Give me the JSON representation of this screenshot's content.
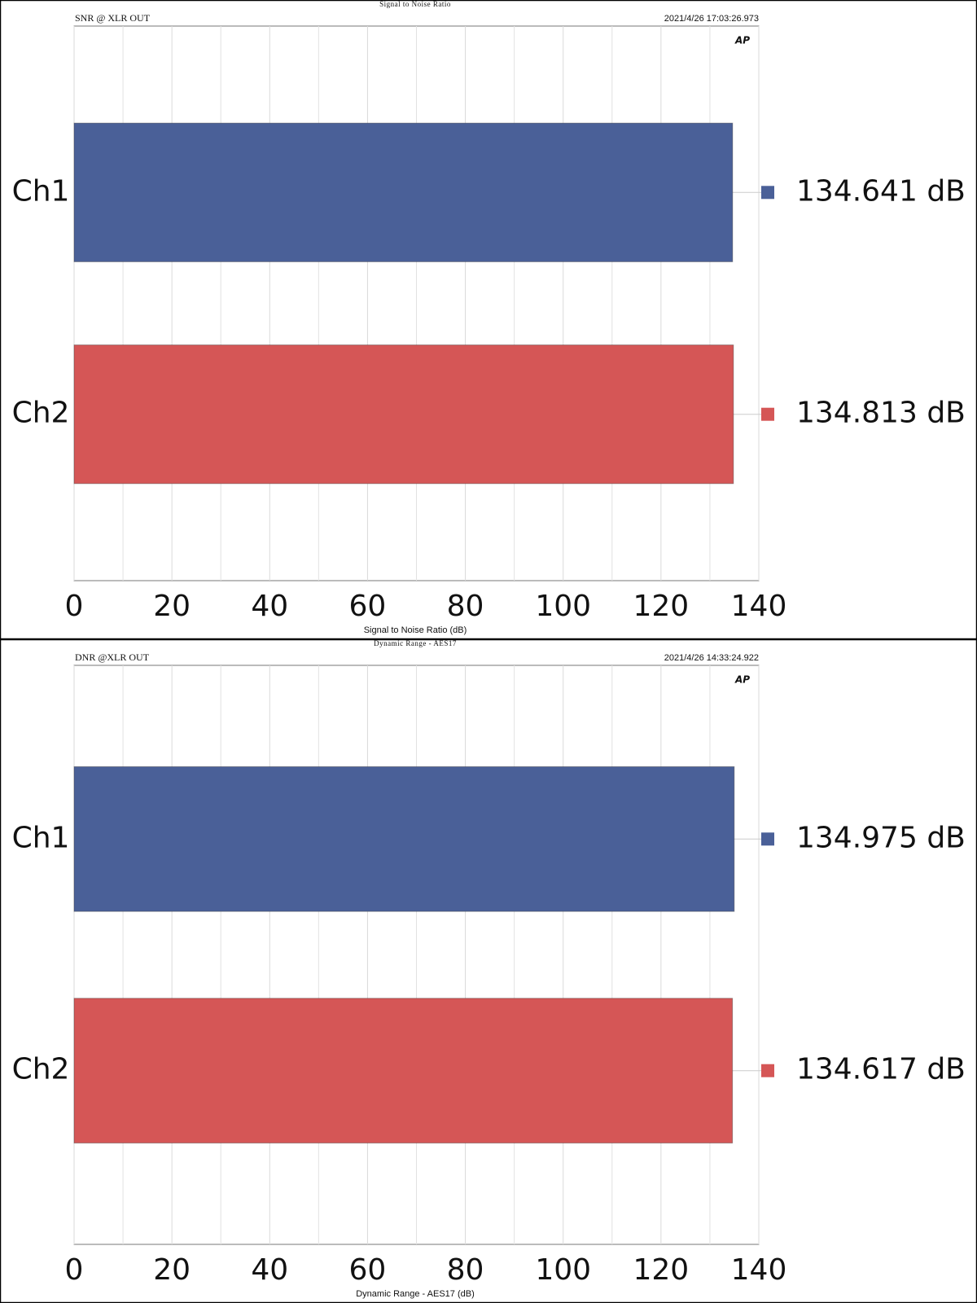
{
  "chart_data": [
    {
      "type": "bar",
      "orientation": "horizontal",
      "title": "Signal to Noise Ratio",
      "subtitle": "SNR @ XLR OUT",
      "timestamp": "2021/4/26 17:03:26.973",
      "logo": "AP",
      "xlabel": "Signal to Noise Ratio (dB)",
      "categories": [
        "Ch1",
        "Ch2"
      ],
      "values": [
        134.641,
        134.813
      ],
      "value_labels": [
        "134.641 dB",
        "134.813 dB"
      ],
      "colors": [
        "#4a6098",
        "#d55656"
      ],
      "xlim": [
        0,
        140
      ],
      "xticks": [
        0,
        20,
        40,
        60,
        80,
        100,
        120,
        140
      ],
      "grid": true,
      "minor_grid": true
    },
    {
      "type": "bar",
      "orientation": "horizontal",
      "title": "Dynamic Range - AES17",
      "subtitle": "DNR @XLR OUT",
      "timestamp": "2021/4/26 14:33:24.922",
      "logo": "AP",
      "xlabel": "Dynamic Range - AES17 (dB)",
      "categories": [
        "Ch1",
        "Ch2"
      ],
      "values": [
        134.975,
        134.617
      ],
      "value_labels": [
        "134.975 dB",
        "134.617 dB"
      ],
      "colors": [
        "#4a6098",
        "#d55656"
      ],
      "xlim": [
        0,
        140
      ],
      "xticks": [
        0,
        20,
        40,
        60,
        80,
        100,
        120,
        140
      ],
      "grid": true,
      "minor_grid": true
    }
  ]
}
